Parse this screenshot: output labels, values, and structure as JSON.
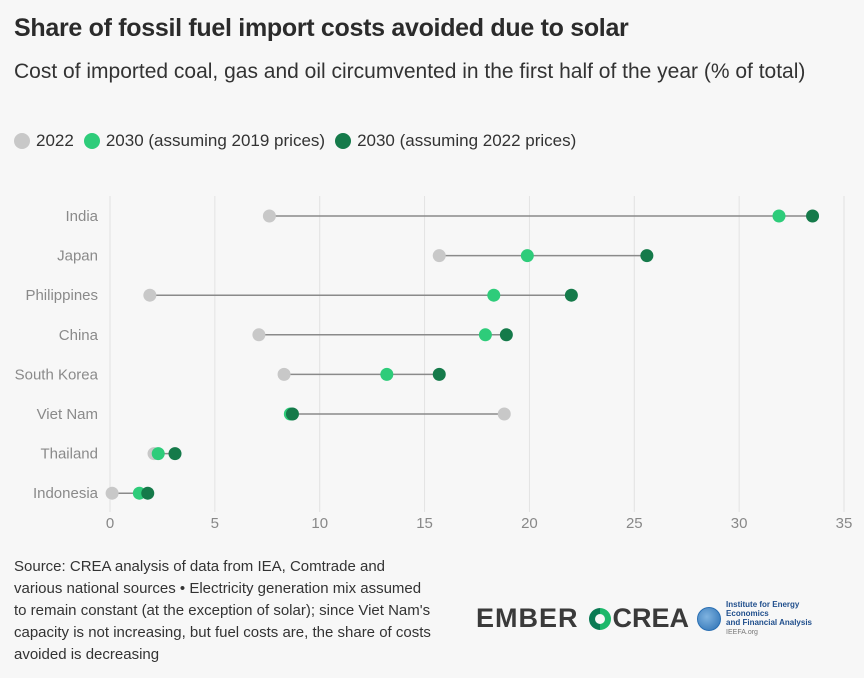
{
  "title": "Share of fossil fuel import costs avoided due to solar",
  "subtitle": "Cost of imported coal, gas and oil circumvented in the first half of the year (% of total)",
  "legend": [
    {
      "label": "2022",
      "color": "#c8c8c8"
    },
    {
      "label": "2030 (assuming 2019 prices)",
      "color": "#2ecc7a"
    },
    {
      "label": "2030 (assuming 2022 prices)",
      "color": "#157a4a"
    }
  ],
  "source": "Source: CREA analysis of data from IEA, Comtrade and various national sources • Electricity generation mix assumed to remain constant (at the exception of solar); since Viet Nam's capacity is not increasing, but fuel costs are, the share of costs avoided is decreasing",
  "logos": {
    "ember": "EMBER",
    "crea": "CREA",
    "ieefa_line1": "Institute for Energy Economics",
    "ieefa_line2": "and Financial Analysis",
    "ieefa_line3": "IEEFA.org"
  },
  "chart_data": {
    "type": "dot",
    "categories": [
      "India",
      "Japan",
      "Philippines",
      "China",
      "South Korea",
      "Viet Nam",
      "Thailand",
      "Indonesia"
    ],
    "series": [
      {
        "name": "2022",
        "color": "#c8c8c8",
        "values": [
          7.6,
          15.7,
          1.9,
          7.1,
          8.3,
          18.8,
          2.1,
          0.1
        ]
      },
      {
        "name": "2030 (assuming 2019 prices)",
        "color": "#2ecc7a",
        "values": [
          31.9,
          19.9,
          18.3,
          17.9,
          13.2,
          8.6,
          2.3,
          1.4
        ]
      },
      {
        "name": "2030 (assuming 2022 prices)",
        "color": "#157a4a",
        "values": [
          33.5,
          25.6,
          22.0,
          18.9,
          15.7,
          8.7,
          3.1,
          1.8
        ]
      }
    ],
    "x_ticks": [
      0,
      5,
      10,
      15,
      20,
      25,
      30,
      35
    ],
    "xlim": [
      0,
      35
    ],
    "grid": true
  }
}
